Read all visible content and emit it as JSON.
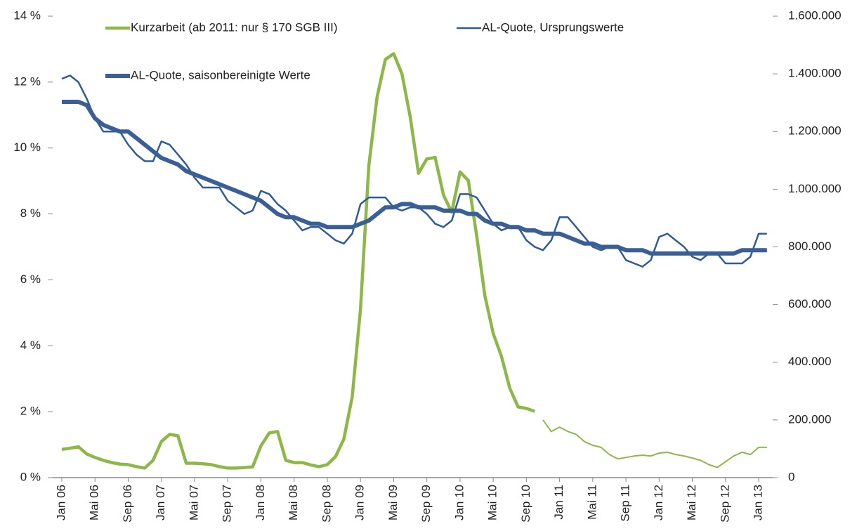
{
  "chart_data": {
    "type": "line",
    "categories": [
      "Jan 06",
      null,
      null,
      null,
      "Mai 06",
      null,
      null,
      null,
      "Sep 06",
      null,
      null,
      null,
      "Jan 07",
      null,
      null,
      null,
      "Mai 07",
      null,
      null,
      null,
      "Sep 07",
      null,
      null,
      null,
      "Jan 08",
      null,
      null,
      null,
      "Mai 08",
      null,
      null,
      null,
      "Sep 08",
      null,
      null,
      null,
      "Jan 09",
      null,
      null,
      null,
      "Mai 09",
      null,
      null,
      null,
      "Sep 09",
      null,
      null,
      null,
      "Jan 10",
      null,
      null,
      null,
      "Mai 10",
      null,
      null,
      null,
      "Sep 10",
      null,
      null,
      null,
      "Jan 11",
      null,
      null,
      null,
      "Mai 11",
      null,
      null,
      null,
      "Sep 11",
      null,
      null,
      null,
      "Jan 12",
      null,
      null,
      null,
      "Mai 12",
      null,
      null,
      null,
      "Sep 12",
      null,
      null,
      null,
      "Jan 13",
      null
    ],
    "ylim": [
      0,
      14
    ],
    "yticks": [
      {
        "value": 0,
        "label": "0 %"
      },
      {
        "value": 2,
        "label": "2 %"
      },
      {
        "value": 4,
        "label": "4 %"
      },
      {
        "value": 6,
        "label": "6 %"
      },
      {
        "value": 8,
        "label": "8 %"
      },
      {
        "value": 10,
        "label": "10 %"
      },
      {
        "value": 12,
        "label": "12 %"
      },
      {
        "value": 14,
        "label": "14 %"
      }
    ],
    "y2lim": [
      0,
      1600000
    ],
    "y2ticks": [
      0,
      {
        "value": 200000,
        "label": "200.000"
      },
      {
        "value": 400000,
        "label": "400.000"
      },
      {
        "value": 600000,
        "label": "600.000"
      },
      {
        "value": 800000,
        "label": "800.000"
      },
      {
        "value": 1000000,
        "label": "1.000.000"
      },
      {
        "value": 1200000,
        "label": "1.200.000"
      },
      {
        "value": 1400000,
        "label": "1.400.000"
      },
      {
        "value": 1600000,
        "label": "1.600.000"
      }
    ],
    "series": [
      {
        "name": "Kurzarbeit (ab 2011: nur § 170 SGB III)",
        "color": "#8db848",
        "axis": "y2",
        "line_width": 4.5,
        "values": [
          98000,
          102000,
          107000,
          82000,
          70000,
          60000,
          52000,
          47000,
          45000,
          38000,
          33000,
          60000,
          125000,
          150000,
          145000,
          50000,
          50000,
          48000,
          45000,
          38000,
          33000,
          33000,
          35000,
          37000,
          110000,
          155000,
          160000,
          60000,
          52000,
          52000,
          44000,
          38000,
          45000,
          73000,
          134000,
          280000,
          585000,
          1080000,
          1320000,
          1450000,
          1470000,
          1400000,
          1250000,
          1055000,
          1105000,
          1110000,
          980000,
          920000,
          1060000,
          1030000,
          840000,
          630000,
          500000,
          420000,
          310000,
          245000,
          240000,
          230000,
          null,
          null,
          null,
          null,
          null,
          null,
          null,
          null,
          null,
          null,
          null,
          null,
          null,
          null,
          null,
          null,
          null,
          null,
          null,
          null,
          null,
          null,
          null,
          null,
          null,
          null,
          null,
          null
        ]
      },
      {
        "color": "#8db848",
        "axis": "y2",
        "line_width": 2,
        "values": [
          null,
          null,
          null,
          null,
          null,
          null,
          null,
          null,
          null,
          null,
          null,
          null,
          null,
          null,
          null,
          null,
          null,
          null,
          null,
          null,
          null,
          null,
          null,
          null,
          null,
          null,
          null,
          null,
          null,
          null,
          null,
          null,
          null,
          null,
          null,
          null,
          null,
          null,
          null,
          null,
          null,
          null,
          null,
          null,
          null,
          null,
          null,
          null,
          null,
          null,
          null,
          null,
          null,
          null,
          null,
          null,
          null,
          null,
          200000,
          160000,
          175000,
          160000,
          150000,
          125000,
          112000,
          105000,
          80000,
          65000,
          70000,
          75000,
          78000,
          75000,
          85000,
          88000,
          80000,
          75000,
          68000,
          60000,
          45000,
          35000,
          55000,
          75000,
          88000,
          80000,
          105000,
          105000
        ]
      },
      {
        "name": "AL-Quote, Ursprungswerte",
        "color": "#2f5b97",
        "axis": "y",
        "line_width": 2.5,
        "values": [
          12.1,
          12.2,
          12.0,
          11.5,
          10.9,
          10.5,
          10.5,
          10.5,
          10.1,
          9.8,
          9.6,
          9.6,
          10.2,
          10.1,
          9.8,
          9.5,
          9.1,
          8.8,
          8.8,
          8.8,
          8.4,
          8.2,
          8.0,
          8.1,
          8.7,
          8.6,
          8.3,
          8.1,
          7.8,
          7.5,
          7.6,
          7.6,
          7.4,
          7.2,
          7.1,
          7.4,
          8.3,
          8.5,
          8.5,
          8.5,
          8.2,
          8.1,
          8.2,
          8.2,
          8.0,
          7.7,
          7.6,
          7.8,
          8.6,
          8.6,
          8.5,
          8.1,
          7.7,
          7.5,
          7.6,
          7.6,
          7.2,
          7.0,
          6.9,
          7.2,
          7.9,
          7.9,
          7.6,
          7.3,
          7.0,
          6.9,
          7.0,
          7.0,
          6.6,
          6.5,
          6.4,
          6.6,
          7.3,
          7.4,
          7.2,
          7.0,
          6.7,
          6.6,
          6.8,
          6.8,
          6.5,
          6.5,
          6.5,
          6.7,
          7.4,
          7.4
        ]
      },
      {
        "name": "AL-Quote, saisonbereinigte Werte",
        "color": "#3a5f95",
        "axis": "y",
        "line_width": 6,
        "values": [
          11.4,
          11.4,
          11.4,
          11.3,
          10.9,
          10.7,
          10.6,
          10.5,
          10.5,
          10.3,
          10.1,
          9.9,
          9.7,
          9.6,
          9.5,
          9.3,
          9.2,
          9.1,
          9.0,
          8.9,
          8.8,
          8.7,
          8.6,
          8.5,
          8.4,
          8.2,
          8.0,
          7.9,
          7.9,
          7.8,
          7.7,
          7.7,
          7.6,
          7.6,
          7.6,
          7.6,
          7.7,
          7.8,
          8.0,
          8.2,
          8.2,
          8.3,
          8.3,
          8.2,
          8.2,
          8.2,
          8.1,
          8.1,
          8.1,
          8.0,
          8.0,
          7.8,
          7.7,
          7.7,
          7.6,
          7.6,
          7.5,
          7.5,
          7.4,
          7.4,
          7.4,
          7.3,
          7.2,
          7.1,
          7.1,
          7.0,
          7.0,
          7.0,
          6.9,
          6.9,
          6.9,
          6.8,
          6.8,
          6.8,
          6.8,
          6.8,
          6.8,
          6.8,
          6.8,
          6.8,
          6.8,
          6.8,
          6.9,
          6.9,
          6.9,
          6.9
        ]
      }
    ]
  }
}
